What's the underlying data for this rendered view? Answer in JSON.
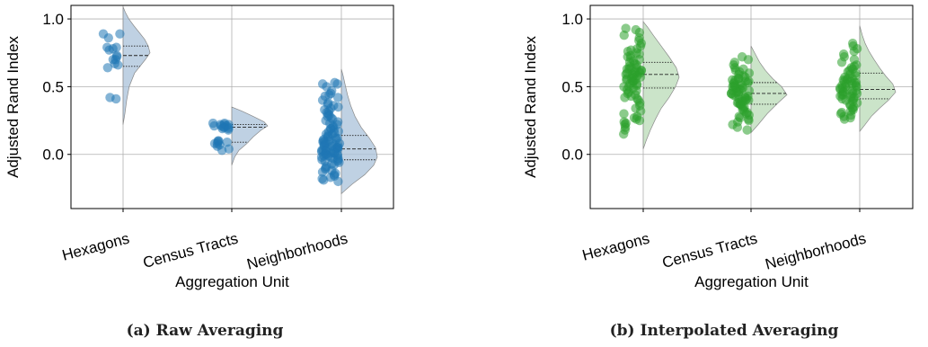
{
  "chart_data": [
    {
      "type": "violin_strip",
      "panel_caption": "(a) Raw Averaging",
      "xlabel": "Aggregation Unit",
      "ylabel": "Adjusted Rand Index",
      "ylim": [
        -0.4,
        1.1
      ],
      "yticks": [
        "0.0",
        "0.5",
        "1.0"
      ],
      "ytick_values": [
        0.0,
        0.5,
        1.0
      ],
      "grid": true,
      "color": "#1f77b4",
      "violin_color": "#a9c2d9",
      "categories": [
        "Hexagons",
        "Census Tracts",
        "Neighborhoods"
      ],
      "groups": [
        {
          "name": "Hexagons",
          "points": [
            0.89,
            0.89,
            0.86,
            0.79,
            0.79,
            0.78,
            0.77,
            0.73,
            0.72,
            0.7,
            0.7,
            0.67,
            0.66,
            0.64,
            0.42,
            0.41
          ],
          "quartiles": [
            0.65,
            0.73,
            0.8
          ],
          "violin": {
            "min": 0.22,
            "max": 1.09,
            "profile": [
              [
                0.22,
                0.0
              ],
              [
                0.3,
                0.05
              ],
              [
                0.4,
                0.1
              ],
              [
                0.5,
                0.17
              ],
              [
                0.6,
                0.32
              ],
              [
                0.7,
                0.62
              ],
              [
                0.75,
                0.75
              ],
              [
                0.8,
                0.7
              ],
              [
                0.85,
                0.6
              ],
              [
                0.9,
                0.45
              ],
              [
                0.95,
                0.3
              ],
              [
                1.0,
                0.16
              ],
              [
                1.05,
                0.06
              ],
              [
                1.09,
                0.0
              ]
            ]
          }
        },
        {
          "name": "Census Tracts",
          "points": [
            0.23,
            0.23,
            0.22,
            0.22,
            0.22,
            0.21,
            0.21,
            0.21,
            0.2,
            0.2,
            0.2,
            0.19,
            0.19,
            0.18,
            0.1,
            0.1,
            0.09,
            0.09,
            0.08,
            0.08,
            0.07,
            0.06,
            0.04,
            0.03
          ],
          "quartiles": [
            0.09,
            0.2,
            0.22
          ],
          "violin": {
            "min": -0.08,
            "max": 0.35,
            "profile": [
              [
                -0.08,
                0.0
              ],
              [
                -0.02,
                0.08
              ],
              [
                0.03,
                0.2
              ],
              [
                0.08,
                0.42
              ],
              [
                0.13,
                0.6
              ],
              [
                0.18,
                0.82
              ],
              [
                0.21,
                1.0
              ],
              [
                0.24,
                0.9
              ],
              [
                0.28,
                0.6
              ],
              [
                0.32,
                0.28
              ],
              [
                0.35,
                0.0
              ]
            ]
          }
        },
        {
          "name": "Neighborhoods",
          "points": [
            0.53,
            0.52,
            0.52,
            0.5,
            0.47,
            0.45,
            0.44,
            0.43,
            0.42,
            0.4,
            0.38,
            0.37,
            0.36,
            0.35,
            0.34,
            0.33,
            0.32,
            0.31,
            0.3,
            0.29,
            0.28,
            0.27,
            0.26,
            0.25,
            0.24,
            0.23,
            0.22,
            0.21,
            0.2,
            0.19,
            0.19,
            0.18,
            0.17,
            0.17,
            0.16,
            0.15,
            0.15,
            0.14,
            0.13,
            0.13,
            0.12,
            0.12,
            0.11,
            0.11,
            0.1,
            0.1,
            0.09,
            0.09,
            0.08,
            0.08,
            0.08,
            0.07,
            0.07,
            0.06,
            0.06,
            0.06,
            0.05,
            0.05,
            0.05,
            0.04,
            0.04,
            0.04,
            0.03,
            0.03,
            0.03,
            0.02,
            0.02,
            0.02,
            0.01,
            0.01,
            0.01,
            0.0,
            0.0,
            0.0,
            -0.01,
            -0.01,
            -0.01,
            -0.02,
            -0.02,
            -0.03,
            -0.03,
            -0.04,
            -0.04,
            -0.05,
            -0.05,
            -0.06,
            -0.07,
            -0.08,
            -0.09,
            -0.1,
            -0.11,
            -0.12,
            -0.13,
            -0.14,
            -0.15,
            -0.16,
            -0.17,
            -0.18,
            -0.19,
            -0.2
          ],
          "quartiles": [
            -0.04,
            0.04,
            0.14
          ],
          "violin": {
            "min": -0.29,
            "max": 0.63,
            "profile": [
              [
                -0.29,
                0.0
              ],
              [
                -0.22,
                0.3
              ],
              [
                -0.15,
                0.65
              ],
              [
                -0.08,
                0.9
              ],
              [
                -0.02,
                1.0
              ],
              [
                0.05,
                0.95
              ],
              [
                0.12,
                0.78
              ],
              [
                0.2,
                0.55
              ],
              [
                0.28,
                0.38
              ],
              [
                0.36,
                0.26
              ],
              [
                0.44,
                0.17
              ],
              [
                0.52,
                0.1
              ],
              [
                0.58,
                0.05
              ],
              [
                0.63,
                0.0
              ]
            ]
          }
        }
      ]
    },
    {
      "type": "violin_strip",
      "panel_caption": "(b) Interpolated Averaging",
      "xlabel": "Aggregation Unit",
      "ylabel": "Adjusted Rand Index",
      "ylim": [
        -0.4,
        1.1
      ],
      "yticks": [
        "0.0",
        "0.5",
        "1.0"
      ],
      "ytick_values": [
        0.0,
        0.5,
        1.0
      ],
      "grid": true,
      "color": "#2ca02c",
      "violin_color": "#b9dbb7",
      "categories": [
        "Hexagons",
        "Census Tracts",
        "Neighborhoods"
      ],
      "groups": [
        {
          "name": "Hexagons",
          "points": [
            0.93,
            0.92,
            0.9,
            0.88,
            0.86,
            0.84,
            0.82,
            0.8,
            0.78,
            0.77,
            0.76,
            0.75,
            0.74,
            0.73,
            0.72,
            0.71,
            0.7,
            0.69,
            0.68,
            0.67,
            0.66,
            0.65,
            0.64,
            0.64,
            0.63,
            0.63,
            0.62,
            0.62,
            0.61,
            0.61,
            0.6,
            0.6,
            0.6,
            0.59,
            0.59,
            0.58,
            0.58,
            0.57,
            0.57,
            0.56,
            0.56,
            0.55,
            0.55,
            0.54,
            0.54,
            0.53,
            0.52,
            0.52,
            0.51,
            0.5,
            0.5,
            0.49,
            0.48,
            0.47,
            0.46,
            0.45,
            0.44,
            0.43,
            0.42,
            0.41,
            0.4,
            0.38,
            0.36,
            0.34,
            0.32,
            0.3,
            0.28,
            0.27,
            0.26,
            0.25,
            0.24,
            0.23,
            0.22,
            0.2,
            0.18,
            0.15
          ],
          "quartiles": [
            0.49,
            0.59,
            0.68
          ],
          "violin": {
            "min": 0.04,
            "max": 0.98,
            "profile": [
              [
                0.04,
                0.0
              ],
              [
                0.1,
                0.08
              ],
              [
                0.18,
                0.2
              ],
              [
                0.26,
                0.34
              ],
              [
                0.34,
                0.5
              ],
              [
                0.42,
                0.72
              ],
              [
                0.5,
                0.9
              ],
              [
                0.57,
                1.0
              ],
              [
                0.64,
                0.92
              ],
              [
                0.72,
                0.72
              ],
              [
                0.8,
                0.5
              ],
              [
                0.88,
                0.28
              ],
              [
                0.94,
                0.12
              ],
              [
                0.98,
                0.0
              ]
            ]
          }
        },
        {
          "name": "Census Tracts",
          "points": [
            0.72,
            0.7,
            0.68,
            0.66,
            0.64,
            0.63,
            0.62,
            0.61,
            0.6,
            0.59,
            0.58,
            0.57,
            0.56,
            0.56,
            0.55,
            0.55,
            0.54,
            0.54,
            0.53,
            0.53,
            0.52,
            0.52,
            0.51,
            0.51,
            0.5,
            0.5,
            0.49,
            0.49,
            0.48,
            0.48,
            0.47,
            0.47,
            0.46,
            0.46,
            0.45,
            0.45,
            0.44,
            0.44,
            0.43,
            0.43,
            0.42,
            0.42,
            0.41,
            0.41,
            0.4,
            0.4,
            0.39,
            0.39,
            0.38,
            0.38,
            0.37,
            0.37,
            0.36,
            0.35,
            0.34,
            0.33,
            0.32,
            0.31,
            0.3,
            0.29,
            0.28,
            0.27,
            0.26,
            0.25,
            0.24,
            0.22,
            0.2,
            0.18
          ],
          "quartiles": [
            0.37,
            0.45,
            0.53
          ],
          "violin": {
            "min": 0.16,
            "max": 0.8,
            "profile": [
              [
                0.16,
                0.0
              ],
              [
                0.22,
                0.2
              ],
              [
                0.3,
                0.45
              ],
              [
                0.38,
                0.75
              ],
              [
                0.44,
                1.0
              ],
              [
                0.5,
                0.85
              ],
              [
                0.56,
                0.6
              ],
              [
                0.62,
                0.4
              ],
              [
                0.68,
                0.24
              ],
              [
                0.74,
                0.12
              ],
              [
                0.8,
                0.0
              ]
            ]
          }
        },
        {
          "name": "Neighborhoods",
          "points": [
            0.82,
            0.8,
            0.78,
            0.76,
            0.74,
            0.72,
            0.7,
            0.68,
            0.66,
            0.65,
            0.64,
            0.63,
            0.62,
            0.61,
            0.6,
            0.59,
            0.58,
            0.57,
            0.56,
            0.56,
            0.55,
            0.55,
            0.54,
            0.54,
            0.53,
            0.53,
            0.52,
            0.52,
            0.51,
            0.51,
            0.5,
            0.5,
            0.49,
            0.49,
            0.48,
            0.48,
            0.47,
            0.47,
            0.46,
            0.46,
            0.45,
            0.45,
            0.44,
            0.44,
            0.43,
            0.43,
            0.42,
            0.42,
            0.41,
            0.41,
            0.4,
            0.39,
            0.38,
            0.37,
            0.36,
            0.35,
            0.34,
            0.33,
            0.32,
            0.31,
            0.3,
            0.29,
            0.28,
            0.27,
            0.26
          ],
          "quartiles": [
            0.41,
            0.48,
            0.6
          ],
          "violin": {
            "min": 0.17,
            "max": 0.95,
            "profile": [
              [
                0.17,
                0.0
              ],
              [
                0.22,
                0.15
              ],
              [
                0.28,
                0.32
              ],
              [
                0.34,
                0.55
              ],
              [
                0.4,
                0.8
              ],
              [
                0.46,
                1.0
              ],
              [
                0.52,
                0.92
              ],
              [
                0.58,
                0.72
              ],
              [
                0.64,
                0.55
              ],
              [
                0.7,
                0.4
              ],
              [
                0.76,
                0.26
              ],
              [
                0.82,
                0.15
              ],
              [
                0.88,
                0.07
              ],
              [
                0.95,
                0.0
              ]
            ]
          }
        }
      ]
    }
  ]
}
